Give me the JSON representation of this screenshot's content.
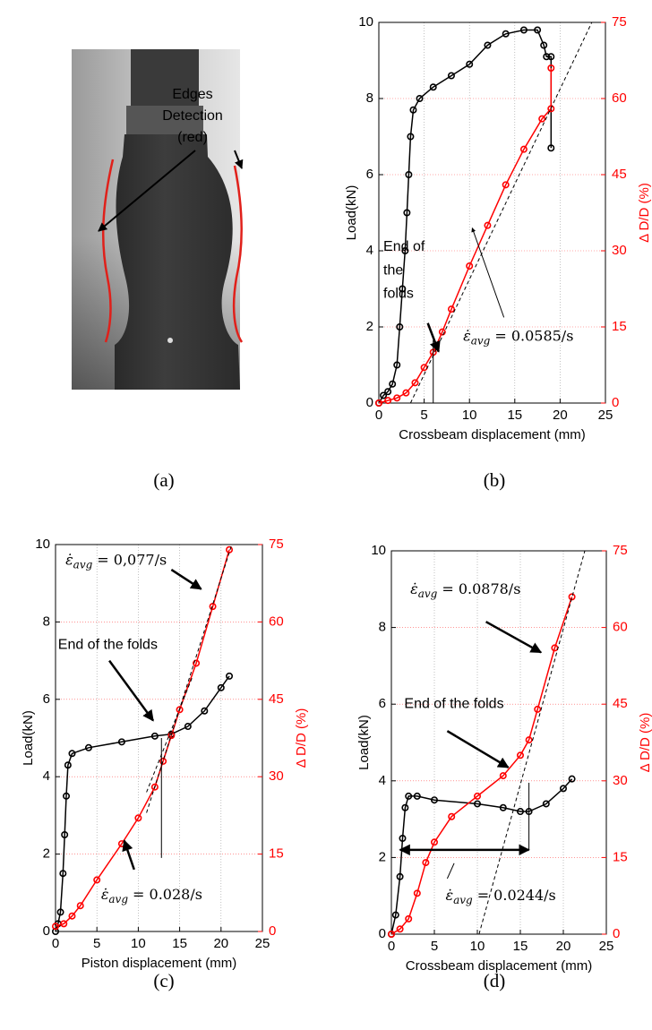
{
  "figure": {
    "photo_label_lines": [
      "Edges",
      "Detection",
      "(red)"
    ],
    "captions": [
      "(a)",
      "(b)",
      "(c)",
      "(d)"
    ]
  },
  "chart_data": [
    {
      "type": "line",
      "xlabel": "Crossbeam displacement (mm)",
      "ylabel": "Load(kN)",
      "y2label": "Δ D/D (%)",
      "xlim": [
        0,
        25
      ],
      "xticks": [
        0,
        5,
        10,
        15,
        20,
        25
      ],
      "ylim": [
        0,
        10
      ],
      "yticks": [
        0,
        2,
        4,
        6,
        8,
        10
      ],
      "y2lim": [
        0,
        75
      ],
      "y2ticks": [
        0,
        15,
        30,
        45,
        60,
        75
      ],
      "grid": true,
      "series": [
        {
          "color": "#000000",
          "marker": "o",
          "x": [
            0,
            0.5,
            1,
            1.5,
            2,
            2.3,
            2.6,
            2.9,
            3.1,
            3.3,
            3.5,
            3.8,
            4.5,
            6,
            8,
            10,
            12,
            14,
            16,
            17.5,
            18.2,
            18.5,
            19,
            19
          ],
          "values": [
            0,
            0.2,
            0.3,
            0.5,
            1,
            2,
            3,
            4,
            5,
            6,
            7,
            7.7,
            8,
            8.3,
            8.6,
            8.9,
            9.4,
            9.7,
            9.8,
            9.8,
            9.4,
            9.1,
            9.1,
            6.7
          ]
        },
        {
          "color": "#ff0000",
          "marker": "o",
          "axis": "y2",
          "x": [
            0,
            1,
            2,
            3,
            4,
            5,
            6,
            7,
            8,
            10,
            12,
            14,
            16,
            18,
            19,
            19
          ],
          "values": [
            0,
            0.5,
            1,
            2,
            4,
            7,
            10,
            14,
            18.5,
            27,
            35,
            43,
            50,
            56,
            58,
            66
          ]
        },
        {
          "color": "#000000",
          "linestyle": "dashed",
          "axis": "y2",
          "x": [
            3.5,
            23.5
          ],
          "values": [
            0,
            75
          ]
        }
      ],
      "annotations": [
        {
          "lines": [
            "End of",
            "the",
            "folds"
          ]
        },
        {
          "symbol": "ε̇",
          "subscript": "avg",
          "text": "= 0.0585/s"
        }
      ]
    },
    {
      "type": "line",
      "xlabel": "Piston displacement (mm)",
      "ylabel": "Load(kN)",
      "y2label": "Δ D/D (%)",
      "xlim": [
        0,
        25
      ],
      "xticks": [
        0,
        5,
        10,
        15,
        20,
        25
      ],
      "ylim": [
        0,
        10
      ],
      "yticks": [
        0,
        2,
        4,
        6,
        8,
        10
      ],
      "y2lim": [
        0,
        75
      ],
      "y2ticks": [
        0,
        15,
        30,
        45,
        60,
        75
      ],
      "grid": true,
      "series": [
        {
          "color": "#000000",
          "marker": "o",
          "x": [
            0,
            0.3,
            0.6,
            0.9,
            1.1,
            1.3,
            1.5,
            2,
            4,
            8,
            12,
            14,
            16,
            18,
            20,
            21
          ],
          "values": [
            0,
            0.2,
            0.5,
            1.5,
            2.5,
            3.5,
            4.3,
            4.6,
            4.75,
            4.9,
            5.05,
            5.1,
            5.3,
            5.7,
            6.3,
            6.6
          ]
        },
        {
          "color": "#ff0000",
          "marker": "o",
          "axis": "y2",
          "x": [
            0,
            1,
            2,
            3,
            5,
            8,
            10,
            12,
            13,
            14,
            15,
            17,
            19,
            21
          ],
          "values": [
            1,
            1.5,
            3,
            5,
            10,
            17,
            22,
            28,
            33,
            38,
            43,
            52,
            63,
            74
          ]
        },
        {
          "color": "#000000",
          "linestyle": "dashed",
          "axis": "y2",
          "x": [
            11,
            21.3
          ],
          "values": [
            23,
            75
          ]
        },
        {
          "color": "#000000",
          "linestyle": "dashed",
          "axis": "y2",
          "x": [
            11,
            16.6
          ],
          "values": [
            27,
            49.6
          ]
        }
      ],
      "annotations": [
        {
          "symbol": "ε̇",
          "subscript": "avg",
          "text": "= 0,077/s"
        },
        {
          "lines": [
            "End of the folds"
          ]
        },
        {
          "symbol": "ε̇",
          "subscript": "avg",
          "text": "= 0.028/s"
        }
      ]
    },
    {
      "type": "line",
      "xlabel": "Crossbeam displacement (mm)",
      "ylabel": "Load(kN)",
      "y2label": "Δ D/D (%)",
      "xlim": [
        0,
        25
      ],
      "xticks": [
        0,
        5,
        10,
        15,
        20,
        25
      ],
      "ylim": [
        0,
        10
      ],
      "yticks": [
        0,
        2,
        4,
        6,
        8,
        10
      ],
      "y2lim": [
        0,
        75
      ],
      "y2ticks": [
        0,
        15,
        30,
        45,
        60,
        75
      ],
      "grid": true,
      "series": [
        {
          "color": "#000000",
          "marker": "o",
          "x": [
            0,
            0.5,
            1,
            1.3,
            1.6,
            2,
            3,
            5,
            10,
            13,
            15,
            16,
            18,
            20,
            21
          ],
          "values": [
            0,
            0.5,
            1.5,
            2.5,
            3.3,
            3.6,
            3.6,
            3.5,
            3.4,
            3.3,
            3.2,
            3.2,
            3.4,
            3.8,
            4.05
          ]
        },
        {
          "color": "#ff0000",
          "marker": "o",
          "axis": "y2",
          "x": [
            0,
            1,
            2,
            3,
            4,
            5,
            7,
            10,
            13,
            15,
            16,
            17,
            19,
            21
          ],
          "values": [
            0,
            1,
            3,
            8,
            14,
            18,
            23,
            27,
            31,
            35,
            38,
            44,
            56,
            66
          ]
        },
        {
          "color": "#000000",
          "linestyle": "dashed",
          "axis": "y2",
          "x": [
            10.2,
            22.5
          ],
          "values": [
            0,
            75
          ]
        }
      ],
      "annotations": [
        {
          "symbol": "ε̇",
          "subscript": "avg",
          "text": "= 0.0878/s"
        },
        {
          "lines": [
            "End of the folds"
          ]
        },
        {
          "symbol": "ε̇",
          "subscript": "avg",
          "text": "= 0.0244/s"
        }
      ]
    }
  ]
}
